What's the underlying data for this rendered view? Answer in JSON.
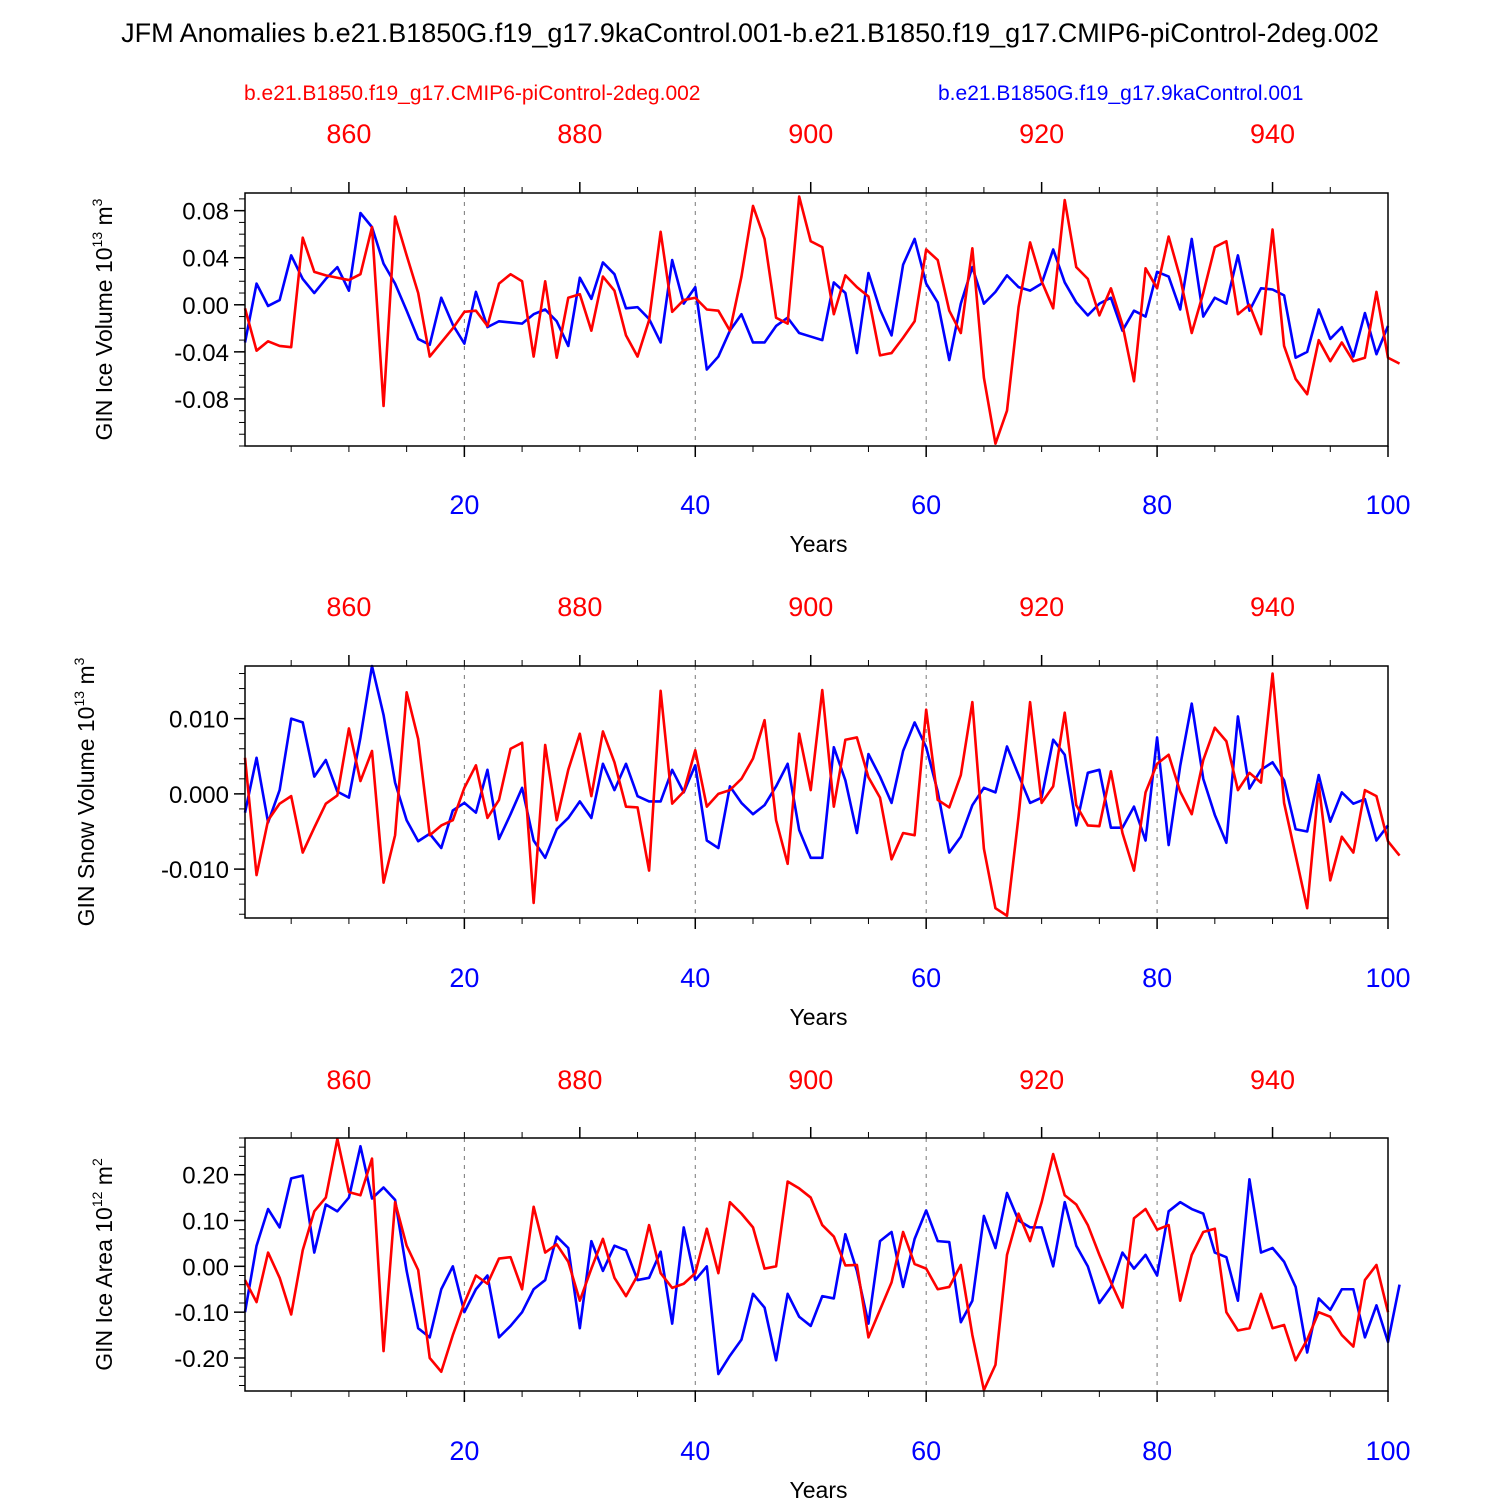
{
  "title": "JFM Anomalies b.e21.B1850G.f19_g17.9kaControl.001-b.e21.B1850.f19_g17.CMIP6-piControl-2deg.002",
  "colors": {
    "red_series": "#ff0000",
    "blue_series": "#0000ff",
    "axis": "#000000",
    "grid": "#777777"
  },
  "legend": {
    "red": "b.e21.B1850.f19_g17.CMIP6-piControl-2deg.002",
    "blue": "b.e21.B1850G.f19_g17.9kaControl.001"
  },
  "chart_data": [
    {
      "type": "line",
      "title": "",
      "ylabel": "GIN Ice Volume",
      "ylabel_unit_base": "10",
      "ylabel_unit_exp": "13",
      "ylabel_unit_rest": "m",
      "ylabel_unit_rest_exp": "3",
      "xlabel": "Years",
      "xlim": [
        1,
        100
      ],
      "ylim": [
        -0.12,
        0.095
      ],
      "yticks": [
        -0.08,
        -0.04,
        0.0,
        0.04,
        0.08
      ],
      "ytick_labels": [
        "-0.08",
        "-0.04",
        "0.00",
        "0.04",
        "0.08"
      ],
      "yminor_step": 0.01,
      "xticks_bottom": [
        20,
        40,
        60,
        80,
        100
      ],
      "xticks_bottom_labels": [
        "20",
        "40",
        "60",
        "80",
        "100"
      ],
      "xticks_top": [
        860,
        880,
        900,
        920,
        940
      ],
      "xticks_top_labels": [
        "860",
        "880",
        "900",
        "920",
        "940"
      ],
      "x_top_offset": 850,
      "series": [
        {
          "name": "b.e21.B1850G.f19_g17.9kaControl.001",
          "color": "#0000ff",
          "values": [
            -0.032,
            0.018,
            -0.001,
            0.004,
            0.042,
            0.022,
            0.01,
            0.022,
            0.032,
            0.012,
            0.078,
            0.066,
            0.035,
            0.018,
            -0.005,
            -0.029,
            -0.034,
            0.006,
            -0.017,
            -0.033,
            0.011,
            -0.019,
            -0.014,
            -0.015,
            -0.016,
            -0.008,
            -0.004,
            -0.014,
            -0.035,
            0.023,
            0.005,
            0.036,
            0.026,
            -0.003,
            -0.002,
            -0.012,
            -0.032,
            0.038,
            0.001,
            0.015,
            -0.055,
            -0.044,
            -0.022,
            -0.008,
            -0.032,
            -0.032,
            -0.018,
            -0.011,
            -0.024,
            -0.027,
            -0.03,
            0.019,
            0.01,
            -0.041,
            0.027,
            -0.004,
            -0.026,
            0.034,
            0.056,
            0.018,
            0.002,
            -0.047,
            0.001,
            0.032,
            0.001,
            0.011,
            0.025,
            0.015,
            0.012,
            0.018,
            0.047,
            0.019,
            0.002,
            -0.009,
            0.001,
            0.006,
            -0.022,
            -0.005,
            -0.01,
            0.028,
            0.024,
            -0.004,
            0.056,
            -0.01,
            0.006,
            0.001,
            0.042,
            -0.005,
            0.014,
            0.013,
            0.008,
            -0.045,
            -0.04,
            -0.004,
            -0.029,
            -0.019,
            -0.044,
            -0.007,
            -0.042,
            -0.018
          ]
        },
        {
          "name": "b.e21.B1850.f19_g17.CMIP6-piControl-2deg.002",
          "color": "#ff0000",
          "values": [
            -0.003,
            -0.039,
            -0.031,
            -0.035,
            -0.036,
            0.057,
            0.028,
            0.025,
            0.023,
            0.021,
            0.026,
            0.066,
            -0.086,
            0.075,
            0.042,
            0.01,
            -0.044,
            -0.032,
            -0.02,
            -0.006,
            -0.005,
            -0.018,
            0.018,
            0.026,
            0.02,
            -0.044,
            0.02,
            -0.045,
            0.006,
            0.009,
            -0.022,
            0.024,
            0.012,
            -0.026,
            -0.044,
            -0.013,
            0.062,
            -0.006,
            0.004,
            0.006,
            -0.004,
            -0.005,
            -0.022,
            0.024,
            0.084,
            0.056,
            -0.011,
            -0.016,
            0.092,
            0.054,
            0.049,
            -0.008,
            0.025,
            0.015,
            0.007,
            -0.043,
            -0.041,
            -0.028,
            -0.014,
            0.047,
            0.038,
            -0.005,
            -0.024,
            0.048,
            -0.062,
            -0.118,
            -0.09,
            -0.002,
            0.053,
            0.02,
            -0.003,
            0.089,
            0.032,
            0.022,
            -0.009,
            0.014,
            -0.017,
            -0.065,
            0.031,
            0.014,
            0.058,
            0.023,
            -0.024,
            0.01,
            0.049,
            0.054,
            -0.008,
            0.0,
            -0.025,
            0.064,
            -0.035,
            -0.063,
            -0.076,
            -0.03,
            -0.048,
            -0.032,
            -0.048,
            -0.045,
            0.011,
            -0.045,
            -0.05
          ]
        }
      ]
    },
    {
      "type": "line",
      "title": "",
      "ylabel": "GIN Snow Volume",
      "ylabel_unit_base": "10",
      "ylabel_unit_exp": "13",
      "ylabel_unit_rest": "m",
      "ylabel_unit_rest_exp": "3",
      "xlabel": "Years",
      "xlim": [
        1,
        100
      ],
      "ylim": [
        -0.0165,
        0.017
      ],
      "yticks": [
        -0.01,
        0.0,
        0.01
      ],
      "ytick_labels": [
        "-0.010",
        "0.000",
        "0.010"
      ],
      "yminor_step": 0.002,
      "xticks_bottom": [
        20,
        40,
        60,
        80,
        100
      ],
      "xticks_bottom_labels": [
        "20",
        "40",
        "60",
        "80",
        "100"
      ],
      "xticks_top": [
        860,
        880,
        900,
        920,
        940
      ],
      "xticks_top_labels": [
        "860",
        "880",
        "900",
        "920",
        "940"
      ],
      "x_top_offset": 850,
      "series": [
        {
          "name": "b.e21.B1850G.f19_g17.9kaControl.001",
          "color": "#0000ff",
          "values": [
            -0.0025,
            0.0048,
            -0.0038,
            0.0005,
            0.01,
            0.0095,
            0.0023,
            0.0045,
            0.0003,
            -0.0005,
            0.0075,
            0.017,
            0.0105,
            0.0015,
            -0.0035,
            -0.0063,
            -0.0053,
            -0.0072,
            -0.0022,
            -0.0012,
            -0.0025,
            0.0032,
            -0.006,
            -0.0027,
            0.0008,
            -0.0062,
            -0.0085,
            -0.0047,
            -0.0032,
            -0.001,
            -0.0032,
            0.004,
            0.0005,
            0.004,
            -0.0003,
            -0.001,
            -0.001,
            0.0032,
            0.0002,
            0.0038,
            -0.0062,
            -0.0072,
            0.001,
            -0.0012,
            -0.0027,
            -0.0015,
            0.001,
            0.004,
            -0.0048,
            -0.0085,
            -0.0085,
            0.0062,
            0.0018,
            -0.0052,
            0.0053,
            0.0023,
            -0.0012,
            0.0057,
            0.0095,
            0.0062,
            0.0003,
            -0.0078,
            -0.0057,
            -0.0015,
            0.0008,
            0.0002,
            0.0063,
            0.0025,
            -0.0012,
            -0.0005,
            0.0072,
            0.0052,
            -0.0042,
            0.0028,
            0.0032,
            -0.0045,
            -0.0045,
            -0.0017,
            -0.0062,
            0.0075,
            -0.0068,
            0.0037,
            0.012,
            0.002,
            -0.0028,
            -0.0065,
            0.0103,
            0.0007,
            0.0032,
            0.0042,
            0.0018,
            -0.0047,
            -0.005,
            0.0025,
            -0.0037,
            0.0002,
            -0.0013,
            -0.0007,
            -0.0062,
            -0.0042
          ]
        },
        {
          "name": "b.e21.B1850.f19_g17.CMIP6-piControl-2deg.002",
          "color": "#ff0000",
          "values": [
            0.0048,
            -0.0108,
            -0.0035,
            -0.0013,
            -0.0003,
            -0.0078,
            -0.0045,
            -0.0013,
            -0.0002,
            0.0087,
            0.0017,
            0.0057,
            -0.0118,
            -0.0055,
            0.0135,
            0.0073,
            -0.0055,
            -0.0042,
            -0.0035,
            0.0008,
            0.0038,
            -0.0032,
            -0.0008,
            0.006,
            0.0068,
            -0.0145,
            0.0065,
            -0.0035,
            0.0032,
            0.008,
            -0.0003,
            0.0083,
            0.0042,
            -0.0017,
            -0.0018,
            -0.0102,
            0.0137,
            -0.0013,
            0.0003,
            0.0058,
            -0.0017,
            0.0,
            0.0005,
            0.002,
            0.0047,
            0.0098,
            -0.0035,
            -0.0093,
            0.008,
            0.0005,
            0.0138,
            -0.0017,
            0.0072,
            0.0075,
            0.0022,
            -0.0005,
            -0.0087,
            -0.0052,
            -0.0055,
            0.0112,
            -0.0008,
            -0.0018,
            0.0025,
            0.0122,
            -0.0073,
            -0.0152,
            -0.0162,
            -0.003,
            0.0122,
            -0.0012,
            0.001,
            0.0108,
            -0.0015,
            -0.0042,
            -0.0043,
            0.003,
            -0.0052,
            -0.0102,
            0.0002,
            0.004,
            0.0052,
            0.0003,
            -0.0027,
            0.0045,
            0.0088,
            0.007,
            0.0005,
            0.0028,
            0.0015,
            0.016,
            -0.0012,
            -0.0082,
            -0.0152,
            0.0013,
            -0.0115,
            -0.0057,
            -0.0078,
            0.0005,
            -0.0003,
            -0.0063,
            -0.0082
          ]
        }
      ]
    },
    {
      "type": "line",
      "title": "",
      "ylabel": "GIN Ice Area",
      "ylabel_unit_base": "10",
      "ylabel_unit_exp": "12",
      "ylabel_unit_rest": "m",
      "ylabel_unit_rest_exp": "2",
      "xlabel": "Years",
      "xlim": [
        1,
        100
      ],
      "ylim": [
        -0.272,
        0.28
      ],
      "yticks": [
        -0.2,
        -0.1,
        0.0,
        0.1,
        0.2
      ],
      "ytick_labels": [
        "-0.20",
        "-0.10",
        "0.00",
        "0.10",
        "0.20"
      ],
      "yminor_step": 0.02,
      "xticks_bottom": [
        20,
        40,
        60,
        80,
        100
      ],
      "xticks_bottom_labels": [
        "20",
        "40",
        "60",
        "80",
        "100"
      ],
      "xticks_top": [
        860,
        880,
        900,
        920,
        940
      ],
      "xticks_top_labels": [
        "860",
        "880",
        "900",
        "920",
        "940"
      ],
      "x_top_offset": 850,
      "series": [
        {
          "name": "b.e21.B1850G.f19_g17.9kaControl.001",
          "color": "#0000ff",
          "values": [
            -0.1,
            0.045,
            0.125,
            0.085,
            0.192,
            0.198,
            0.03,
            0.135,
            0.12,
            0.15,
            0.262,
            0.148,
            0.172,
            0.145,
            -0.01,
            -0.135,
            -0.155,
            -0.05,
            0.0,
            -0.1,
            -0.05,
            -0.02,
            -0.155,
            -0.13,
            -0.1,
            -0.05,
            -0.03,
            0.065,
            0.04,
            -0.135,
            0.055,
            -0.01,
            0.045,
            0.035,
            -0.03,
            -0.025,
            0.032,
            -0.125,
            0.085,
            -0.03,
            0.0,
            -0.235,
            -0.195,
            -0.16,
            -0.06,
            -0.09,
            -0.205,
            -0.06,
            -0.11,
            -0.13,
            -0.065,
            -0.07,
            0.07,
            -0.01,
            -0.125,
            0.055,
            0.075,
            -0.045,
            0.06,
            0.122,
            0.055,
            0.053,
            -0.122,
            -0.075,
            0.11,
            0.04,
            0.16,
            0.1,
            0.085,
            0.085,
            0.0,
            0.14,
            0.045,
            0.0,
            -0.08,
            -0.045,
            0.03,
            -0.005,
            0.025,
            -0.02,
            0.12,
            0.14,
            0.125,
            0.115,
            0.03,
            0.02,
            -0.075,
            0.19,
            0.03,
            0.04,
            0.01,
            -0.045,
            -0.188,
            -0.07,
            -0.095,
            -0.05,
            -0.05,
            -0.155,
            -0.085,
            -0.165,
            -0.04
          ]
        },
        {
          "name": "b.e21.B1850.f19_g17.CMIP6-piControl-2deg.002",
          "color": "#ff0000",
          "values": [
            -0.03,
            -0.078,
            0.03,
            -0.025,
            -0.105,
            0.035,
            0.12,
            0.15,
            0.278,
            0.162,
            0.155,
            0.235,
            -0.185,
            0.14,
            0.045,
            -0.008,
            -0.2,
            -0.23,
            -0.15,
            -0.08,
            -0.02,
            -0.038,
            0.017,
            0.02,
            -0.05,
            0.13,
            0.03,
            0.048,
            0.01,
            -0.075,
            -0.005,
            0.06,
            -0.025,
            -0.065,
            -0.02,
            0.09,
            -0.015,
            -0.047,
            -0.038,
            -0.015,
            0.082,
            -0.015,
            0.14,
            0.115,
            0.085,
            -0.005,
            0.0,
            0.185,
            0.17,
            0.15,
            0.09,
            0.065,
            0.002,
            0.003,
            -0.155,
            -0.095,
            -0.035,
            0.075,
            0.005,
            -0.005,
            -0.05,
            -0.045,
            0.003,
            -0.15,
            -0.27,
            -0.215,
            0.025,
            0.115,
            0.055,
            0.14,
            0.245,
            0.155,
            0.135,
            0.09,
            0.025,
            -0.035,
            -0.09,
            0.105,
            0.125,
            0.08,
            0.09,
            -0.075,
            0.025,
            0.075,
            0.082,
            -0.1,
            -0.14,
            -0.135,
            -0.06,
            -0.135,
            -0.128,
            -0.205,
            -0.16,
            -0.1,
            -0.11,
            -0.15,
            -0.175,
            -0.03,
            0.003,
            -0.1
          ]
        }
      ]
    }
  ]
}
